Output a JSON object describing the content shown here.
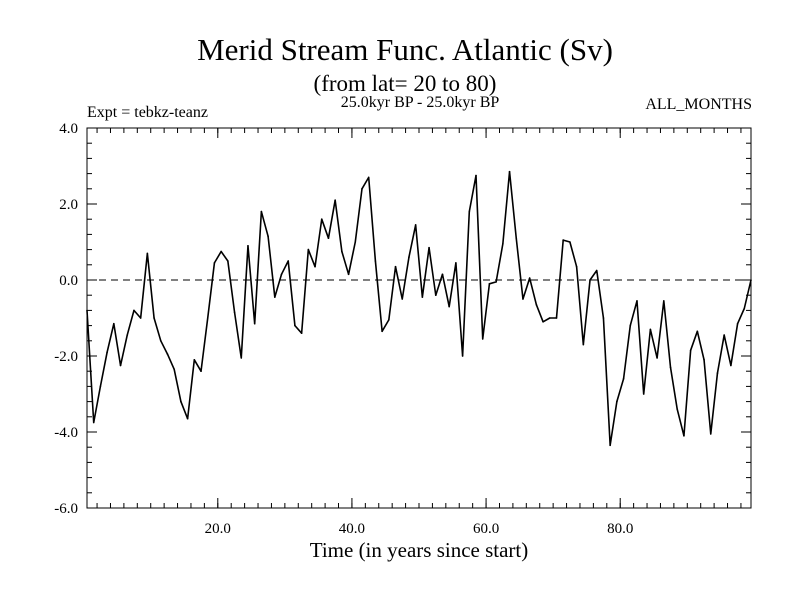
{
  "chart_data": {
    "type": "line",
    "title": "Merid Stream Func. Atlantic (Sv)",
    "subtitle": "(from lat= 20 to 80)",
    "period_label": "25.0kyr BP - 25.0kyr BP",
    "expt_label": "Expt = tebkz-teanz",
    "months_label": "ALL_MONTHS",
    "xlabel": "Time (in years since start)",
    "ylabel": "",
    "xlim": [
      0.5,
      99.5
    ],
    "ylim": [
      -6.0,
      4.0
    ],
    "x_ticks": [
      20,
      40,
      60,
      80
    ],
    "x_tick_labels": [
      "20.0",
      "40.0",
      "60.0",
      "80.0"
    ],
    "y_ticks": [
      -6,
      -4,
      -2,
      0,
      2,
      4
    ],
    "y_tick_labels": [
      "-6.0",
      "-4.0",
      "-2.0",
      "0.0",
      "2.0",
      "4.0"
    ],
    "reference_line": 0.0,
    "colors": {
      "line": "#000000",
      "axes": "#000000",
      "background": "#ffffff"
    },
    "series": [
      {
        "name": "Merid Stream Func. Atlantic",
        "x": [
          0.5,
          1.5,
          2.5,
          3.5,
          4.5,
          5.5,
          6.5,
          7.5,
          8.5,
          9.5,
          10.5,
          11.5,
          12.5,
          13.5,
          14.5,
          15.5,
          16.5,
          17.5,
          18.5,
          19.5,
          20.5,
          21.5,
          22.5,
          23.5,
          24.5,
          25.5,
          26.5,
          27.5,
          28.5,
          29.5,
          30.5,
          31.5,
          32.5,
          33.5,
          34.5,
          35.5,
          36.5,
          37.5,
          38.5,
          39.5,
          40.5,
          41.5,
          42.5,
          43.5,
          44.5,
          45.5,
          46.5,
          47.5,
          48.5,
          49.5,
          50.5,
          51.5,
          52.5,
          53.5,
          54.5,
          55.5,
          56.5,
          57.5,
          58.5,
          59.5,
          60.5,
          61.5,
          62.5,
          63.5,
          64.5,
          65.5,
          66.5,
          67.5,
          68.5,
          69.5,
          70.5,
          71.5,
          72.5,
          73.5,
          74.5,
          75.5,
          76.5,
          77.5,
          78.5,
          79.5,
          80.5,
          81.5,
          82.5,
          83.5,
          84.5,
          85.5,
          86.5,
          87.5,
          88.5,
          89.5,
          90.5,
          91.5,
          92.5,
          93.5,
          94.5,
          95.5,
          96.5,
          97.5,
          98.5,
          99.5
        ],
        "values": [
          -0.8,
          -3.75,
          -2.8,
          -1.9,
          -1.15,
          -2.25,
          -1.45,
          -0.8,
          -1.0,
          0.7,
          -1.0,
          -1.6,
          -1.95,
          -2.35,
          -3.2,
          -3.65,
          -2.1,
          -2.4,
          -1.0,
          0.45,
          0.75,
          0.5,
          -0.85,
          -2.05,
          0.9,
          -1.15,
          1.8,
          1.15,
          -0.45,
          0.15,
          0.5,
          -1.2,
          -1.4,
          0.8,
          0.35,
          1.6,
          1.1,
          2.1,
          0.75,
          0.15,
          1.0,
          2.4,
          2.7,
          0.5,
          -1.35,
          -1.05,
          0.35,
          -0.5,
          0.6,
          1.45,
          -0.45,
          0.85,
          -0.4,
          0.15,
          -0.7,
          0.45,
          -2.0,
          1.8,
          2.75,
          -1.55,
          -0.1,
          -0.05,
          0.95,
          2.85,
          1.1,
          -0.5,
          0.05,
          -0.65,
          -1.1,
          -1.0,
          -1.0,
          1.05,
          1.0,
          0.35,
          -1.7,
          0.0,
          0.25,
          -1.0,
          -4.35,
          -3.2,
          -2.6,
          -1.2,
          -0.55,
          -3.0,
          -1.3,
          -2.05,
          -0.55,
          -2.3,
          -3.4,
          -4.1,
          -1.85,
          -1.35,
          -2.1,
          -4.05,
          -2.45,
          -1.45,
          -2.25,
          -1.15,
          -0.75,
          0.0
        ]
      }
    ]
  }
}
